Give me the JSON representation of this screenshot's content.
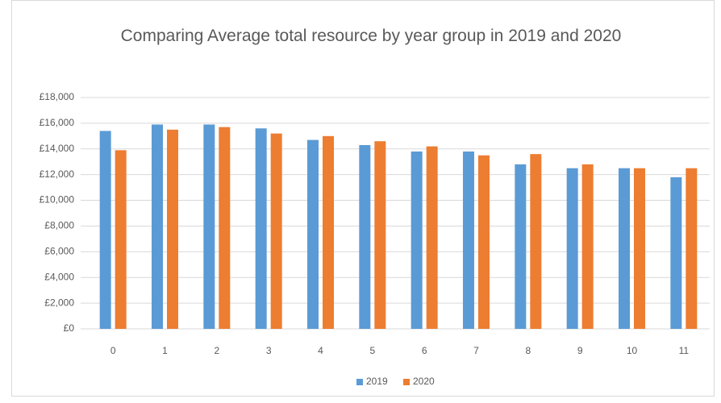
{
  "chart_data": {
    "type": "bar",
    "title": "Comparing Average total resource by year group in 2019 and 2020",
    "categories": [
      "0",
      "1",
      "2",
      "3",
      "4",
      "5",
      "6",
      "7",
      "8",
      "9",
      "10",
      "11"
    ],
    "series": [
      {
        "name": "2019",
        "color": "#5b9bd5",
        "values": [
          15400,
          15900,
          15900,
          15600,
          14700,
          14300,
          13800,
          13800,
          12800,
          12500,
          12500,
          11800
        ]
      },
      {
        "name": "2020",
        "color": "#ed7d31",
        "values": [
          13900,
          15500,
          15700,
          15200,
          15000,
          14600,
          14200,
          13500,
          13600,
          12800,
          12500,
          12500
        ]
      }
    ],
    "ylim": [
      0,
      18000
    ],
    "yticks": [
      {
        "value": 0,
        "label": "£0"
      },
      {
        "value": 2000,
        "label": "£2,000"
      },
      {
        "value": 4000,
        "label": "£4,000"
      },
      {
        "value": 6000,
        "label": "£6,000"
      },
      {
        "value": 8000,
        "label": "£8,000"
      },
      {
        "value": 10000,
        "label": "£10,000"
      },
      {
        "value": 12000,
        "label": "£12,000"
      },
      {
        "value": 14000,
        "label": "£14,000"
      },
      {
        "value": 16000,
        "label": "£16,000"
      },
      {
        "value": 18000,
        "label": "£18,000"
      }
    ],
    "grid": true,
    "legend": "bottom"
  }
}
